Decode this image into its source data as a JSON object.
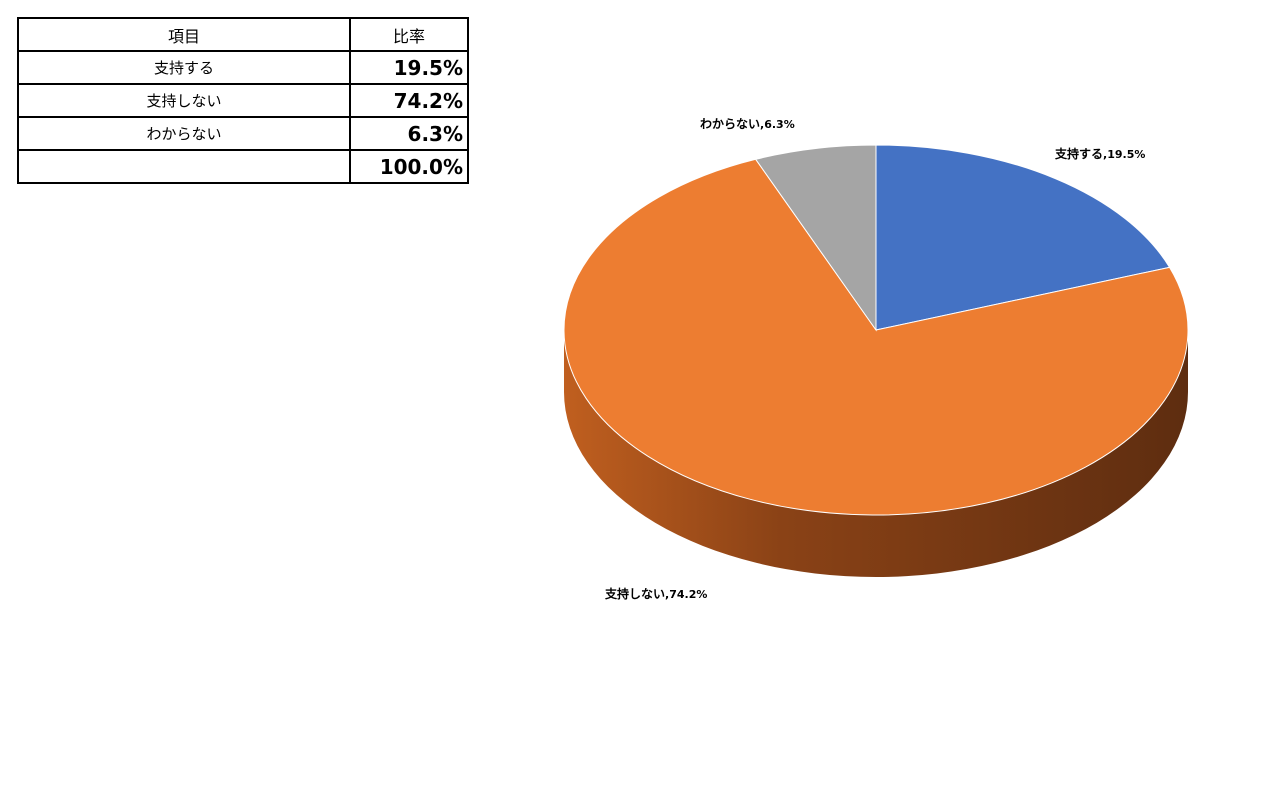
{
  "table": {
    "header": [
      "項目",
      "比率"
    ],
    "rows": [
      [
        "支持する",
        "19.5%"
      ],
      [
        "支持しない",
        "74.2%"
      ],
      [
        "わからない",
        "6.3%"
      ]
    ],
    "total": "100.0%"
  },
  "chart_data": {
    "type": "pie",
    "categories": [
      "支持する",
      "支持しない",
      "わからない"
    ],
    "values": [
      19.5,
      74.2,
      6.3
    ],
    "value_labels": [
      "19.5%",
      "74.2%",
      "6.3%"
    ],
    "label_separator": ",",
    "colors": [
      "#4472c4",
      "#ed7d31",
      "#a5a5a5"
    ]
  }
}
